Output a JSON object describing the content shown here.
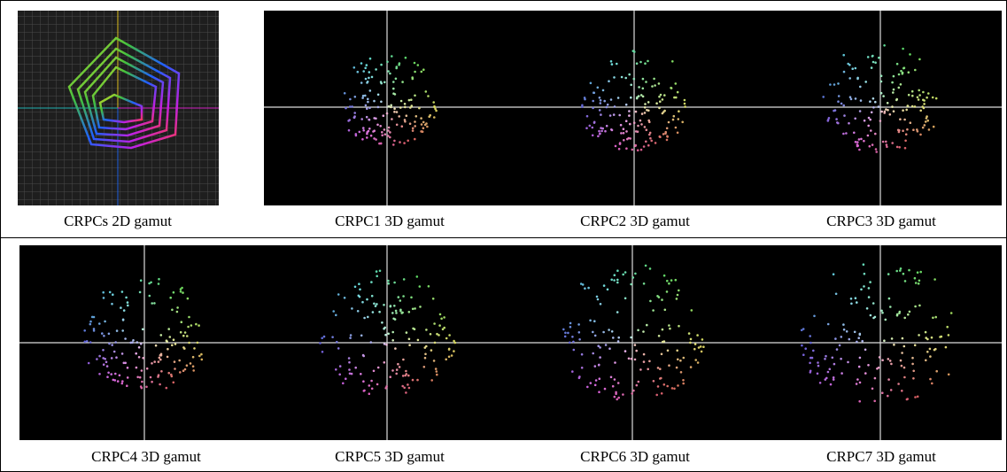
{
  "figure": {
    "captions": [
      "CRPCs 2D gamut",
      "CRPC1 3D gamut",
      "CRPC2 3D gamut",
      "CRPC3 3D gamut",
      "CRPC4 3D gamut",
      "CRPC5 3D gamut",
      "CRPC6 3D gamut",
      "CRPC7 3D gamut"
    ]
  }
}
